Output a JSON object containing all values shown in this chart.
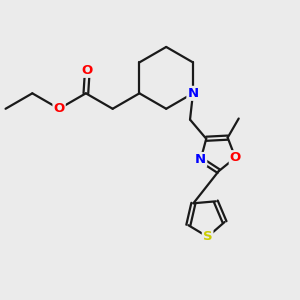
{
  "bg_color": "#ebebeb",
  "bond_color": "#1a1a1a",
  "N_color": "#0000ff",
  "O_color": "#ff0000",
  "S_color": "#cccc00",
  "line_width": 1.6,
  "font_size": 9.5,
  "fig_size": [
    3.0,
    3.0
  ],
  "dpi": 100,
  "xlim": [
    0,
    10
  ],
  "ylim": [
    0,
    10
  ]
}
